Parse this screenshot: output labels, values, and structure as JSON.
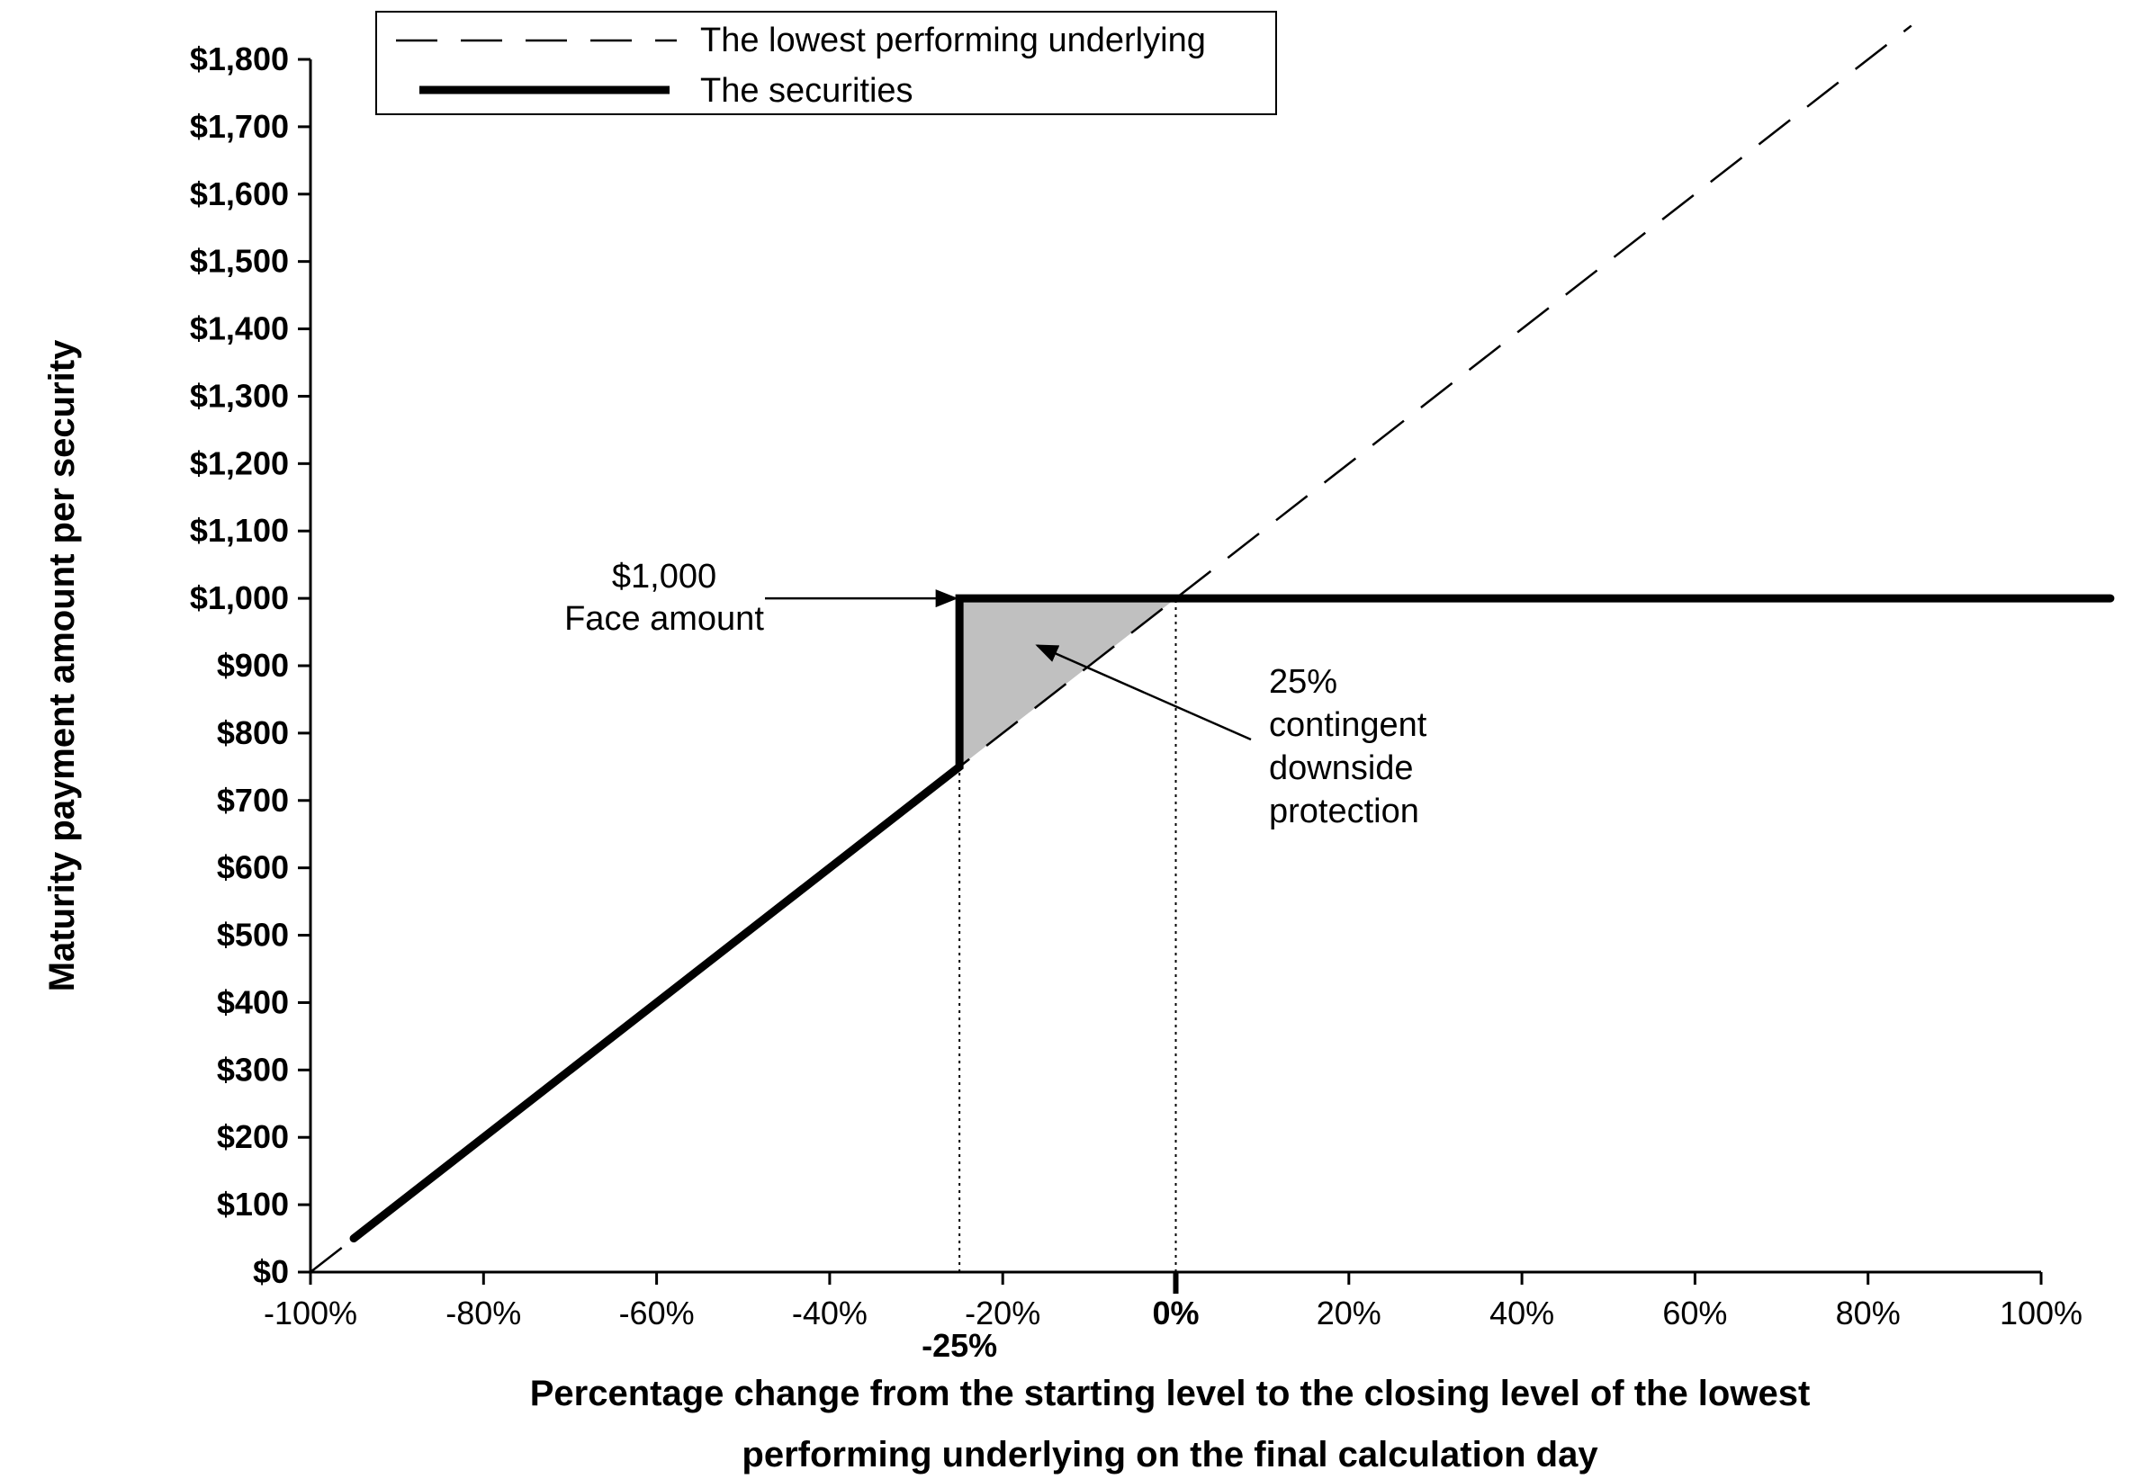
{
  "chart_data": {
    "type": "line",
    "title": "",
    "xlabel": "Percentage change from the starting level to the closing level of the lowest performing underlying on the final calculation day",
    "xlabel_lines": [
      "Percentage change from the starting level to the closing level of the lowest",
      "performing underlying on the final calculation day"
    ],
    "ylabel": "Maturity payment amount per security",
    "xlim": [
      -100,
      100
    ],
    "ylim": [
      0,
      1800
    ],
    "x_ticks": [
      -100,
      -80,
      -60,
      -40,
      -20,
      0,
      20,
      40,
      60,
      80,
      100
    ],
    "x_tick_labels": [
      "-100%",
      "-80%",
      "-60%",
      "-40%",
      "-20%",
      "0%",
      "20%",
      "40%",
      "60%",
      "80%",
      "100%"
    ],
    "x_extra_tick": {
      "value": -25,
      "label": "-25%"
    },
    "y_ticks": [
      0,
      100,
      200,
      300,
      400,
      500,
      600,
      700,
      800,
      900,
      1000,
      1100,
      1200,
      1300,
      1400,
      1500,
      1600,
      1700,
      1800
    ],
    "y_tick_labels": [
      "$0",
      "$100",
      "$200",
      "$300",
      "$400",
      "$500",
      "$600",
      "$700",
      "$800",
      "$900",
      "$1,000",
      "$1,100",
      "$1,200",
      "$1,300",
      "$1,400",
      "$1,500",
      "$1,600",
      "$1,700",
      "$1,800"
    ],
    "grid": false,
    "legend_position": "top-left",
    "series": [
      {
        "name": "The lowest performing underlying",
        "style": "dashed",
        "points": [
          [
            -100,
            0
          ],
          [
            -25,
            750
          ],
          [
            -5,
            950
          ],
          [
            0,
            1000
          ],
          [
            85,
            1850
          ]
        ]
      },
      {
        "name": "The securities",
        "style": "thick-solid",
        "points": [
          [
            -95,
            50
          ],
          [
            -25,
            750
          ],
          [
            -25,
            1000
          ],
          [
            0,
            1000
          ],
          [
            108,
            1000
          ]
        ]
      }
    ],
    "shaded_region": {
      "points": [
        [
          -25,
          750
        ],
        [
          -25,
          1000
        ],
        [
          0,
          1000
        ]
      ],
      "color": "#c0c0c0"
    },
    "reference_lines": [
      {
        "x": -25,
        "y_from": 0,
        "y_to": 750,
        "style": "dotted"
      },
      {
        "x": 0,
        "y_from": 0,
        "y_to": 1000,
        "style": "dotted"
      }
    ],
    "annotations": [
      {
        "lines": [
          "$1,000",
          "Face amount"
        ],
        "arrow_to": [
          -25,
          1000
        ]
      },
      {
        "lines": [
          "25%",
          "contingent",
          "downside",
          "protection"
        ],
        "arrow_to": [
          -16,
          930
        ]
      }
    ]
  }
}
